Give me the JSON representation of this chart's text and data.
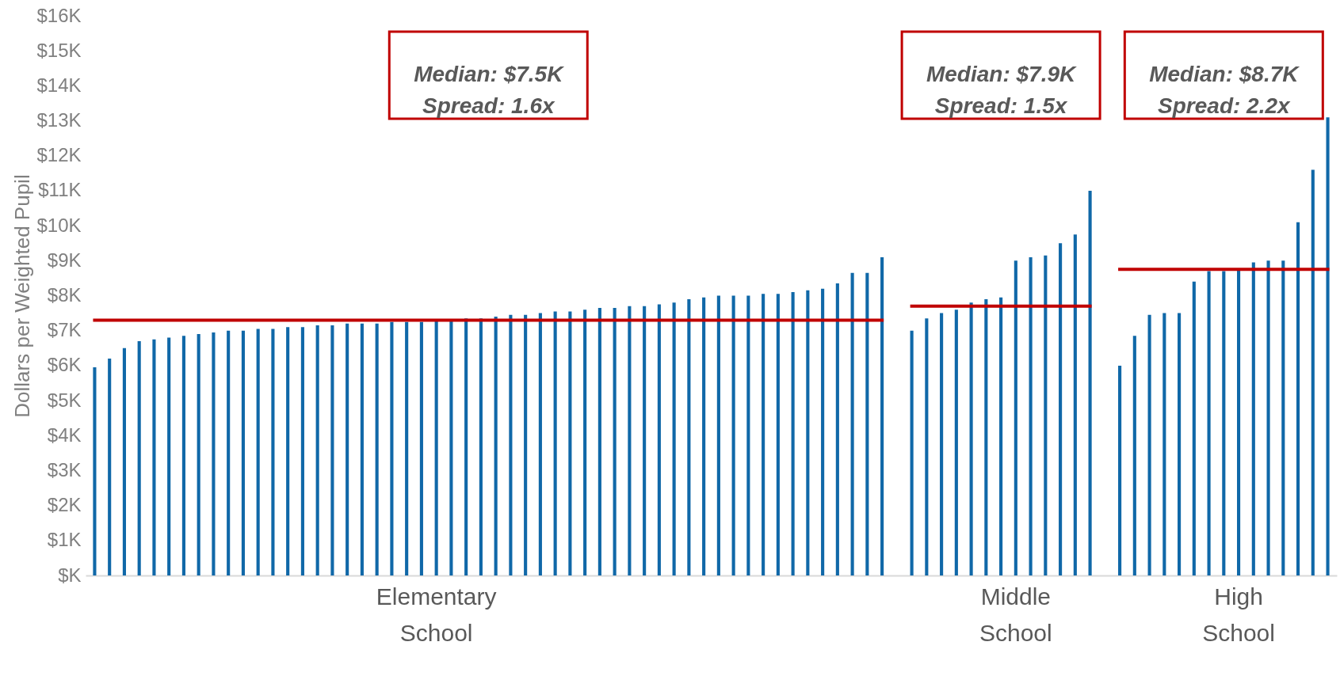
{
  "chart_data": {
    "type": "bar",
    "ylabel": "Dollars per Weighted Pupil",
    "categories": [
      null,
      null,
      null,
      null,
      null,
      null,
      null,
      null,
      null,
      null,
      null,
      null,
      null,
      null,
      null,
      null,
      null,
      null,
      null,
      null,
      null,
      null,
      null,
      "Elementary School",
      null,
      null,
      null,
      null,
      null,
      null,
      null,
      null,
      null,
      null,
      null,
      null,
      null,
      null,
      null,
      null,
      null,
      null,
      null,
      null,
      null,
      null,
      null,
      null,
      null,
      null,
      null,
      null,
      null,
      null,
      null,
      null,
      null,
      null,
      null,
      null,
      null,
      null,
      "Middle School",
      null,
      null,
      null,
      null,
      null,
      null,
      null,
      null,
      null,
      null,
      null,
      null,
      null,
      null,
      "High School",
      null,
      null,
      null,
      null,
      null,
      null
    ],
    "series": [
      {
        "color": "#1068a8",
        "values": [
          5.95,
          6.2,
          6.5,
          6.7,
          6.75,
          6.8,
          6.85,
          6.9,
          6.95,
          7.0,
          7.0,
          7.05,
          7.05,
          7.1,
          7.1,
          7.15,
          7.15,
          7.2,
          7.2,
          7.2,
          7.25,
          7.25,
          7.25,
          7.3,
          7.3,
          7.35,
          7.35,
          7.4,
          7.45,
          7.45,
          7.5,
          7.55,
          7.55,
          7.6,
          7.65,
          7.65,
          7.7,
          7.7,
          7.75,
          7.8,
          7.9,
          7.95,
          8.0,
          8.0,
          8.0,
          8.05,
          8.05,
          8.1,
          8.15,
          8.2,
          8.35,
          8.65,
          8.65,
          9.1,
          null,
          7.0,
          7.35,
          7.5,
          7.6,
          7.8,
          7.9,
          7.95,
          9.0,
          9.1,
          9.15,
          9.5,
          9.75,
          11.0,
          null,
          6.0,
          6.85,
          7.45,
          7.5,
          7.5,
          8.4,
          8.7,
          8.7,
          8.75,
          8.95,
          9.0,
          9.0,
          10.1,
          11.6,
          13.1
        ]
      },
      {
        "type": "line",
        "color": "#c00000",
        "values": [
          7.3,
          7.3,
          7.3,
          7.3,
          7.3,
          7.3,
          7.3,
          7.3,
          7.3,
          7.3,
          7.3,
          7.3,
          7.3,
          7.3,
          7.3,
          7.3,
          7.3,
          7.3,
          7.3,
          7.3,
          7.3,
          7.3,
          7.3,
          7.3,
          7.3,
          7.3,
          7.3,
          7.3,
          7.3,
          7.3,
          7.3,
          7.3,
          7.3,
          7.3,
          7.3,
          7.3,
          7.3,
          7.3,
          7.3,
          7.3,
          7.3,
          7.3,
          7.3,
          7.3,
          7.3,
          7.3,
          7.3,
          7.3,
          7.3,
          7.3,
          7.3,
          7.3,
          7.3,
          7.3,
          null,
          null,
          null,
          null,
          null,
          null,
          null,
          null,
          null,
          null,
          null,
          null,
          null,
          null,
          null,
          null,
          null,
          null,
          null,
          null,
          null,
          null,
          null,
          null,
          null,
          null,
          null,
          null,
          null,
          null
        ]
      },
      {
        "type": "line",
        "color": "#c00000",
        "values": [
          null,
          null,
          null,
          null,
          null,
          null,
          null,
          null,
          null,
          null,
          null,
          null,
          null,
          null,
          null,
          null,
          null,
          null,
          null,
          null,
          null,
          null,
          null,
          null,
          null,
          null,
          null,
          null,
          null,
          null,
          null,
          null,
          null,
          null,
          null,
          null,
          null,
          null,
          null,
          null,
          null,
          null,
          null,
          null,
          null,
          null,
          null,
          null,
          null,
          null,
          null,
          null,
          null,
          null,
          null,
          7.7,
          7.7,
          7.7,
          7.7,
          7.7,
          7.7,
          7.7,
          7.7,
          7.7,
          7.7,
          7.7,
          7.7,
          7.7,
          null,
          null,
          null,
          null,
          null,
          null,
          null,
          null,
          null,
          null,
          null,
          null,
          null,
          null,
          null,
          null
        ]
      },
      {
        "type": "line",
        "color": "#c00000",
        "values": [
          null,
          null,
          null,
          null,
          null,
          null,
          null,
          null,
          null,
          null,
          null,
          null,
          null,
          null,
          null,
          null,
          null,
          null,
          null,
          null,
          null,
          null,
          null,
          null,
          null,
          null,
          null,
          null,
          null,
          null,
          null,
          null,
          null,
          null,
          null,
          null,
          null,
          null,
          null,
          null,
          null,
          null,
          null,
          null,
          null,
          null,
          null,
          null,
          null,
          null,
          null,
          null,
          null,
          null,
          null,
          null,
          null,
          null,
          null,
          null,
          null,
          null,
          null,
          null,
          null,
          null,
          null,
          null,
          null,
          8.75,
          8.75,
          8.75,
          8.75,
          8.75,
          8.75,
          8.75,
          8.75,
          8.75,
          8.75,
          8.75,
          8.75,
          8.75,
          8.75,
          8.75
        ]
      }
    ],
    "annotations": [
      "Median: $7.5K\nSpread: 1.6x",
      "Median: $7.9K\nSpread: 1.5x",
      "Median: $8.7K\nSpread: 2.2x"
    ],
    "ylim": [
      0,
      16
    ],
    "yticks": [
      {
        "value": 0,
        "label": "$K"
      },
      {
        "value": 1,
        "label": "$1K"
      },
      {
        "value": 2,
        "label": "$2K"
      },
      {
        "value": 3,
        "label": "$3K"
      },
      {
        "value": 4,
        "label": "$4K"
      },
      {
        "value": 5,
        "label": "$5K"
      },
      {
        "value": 6,
        "label": "$6K"
      },
      {
        "value": 7,
        "label": "$7K"
      },
      {
        "value": 8,
        "label": "$8K"
      },
      {
        "value": 9,
        "label": "$9K"
      },
      {
        "value": 10,
        "label": "$10K"
      },
      {
        "value": 11,
        "label": "$11K"
      },
      {
        "value": 12,
        "label": "$12K"
      },
      {
        "value": 13,
        "label": "$13K"
      },
      {
        "value": 14,
        "label": "$14K"
      },
      {
        "value": 15,
        "label": "$15K"
      },
      {
        "value": 16,
        "label": "$16K"
      }
    ]
  }
}
